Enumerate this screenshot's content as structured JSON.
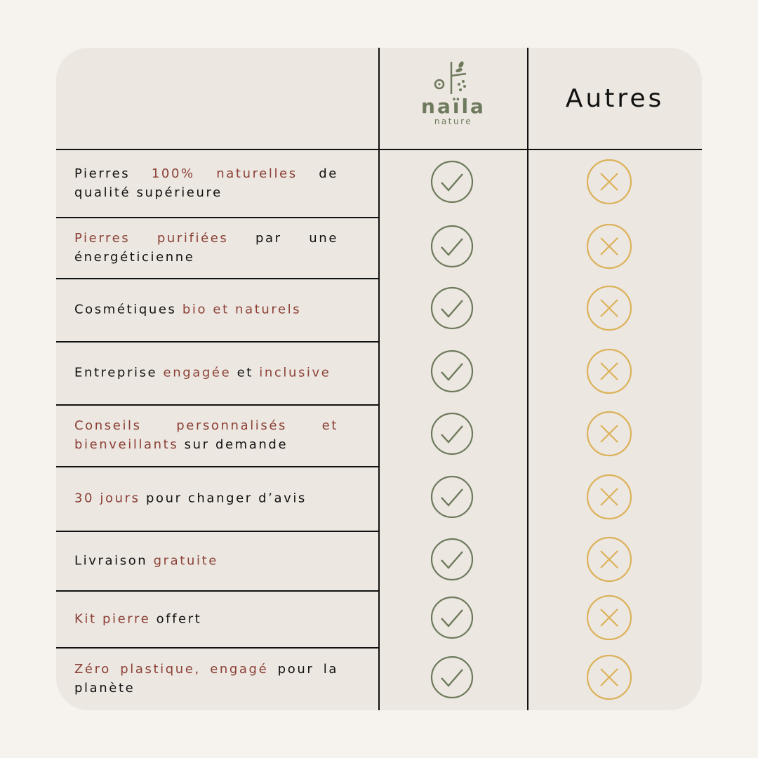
{
  "header": {
    "brand_name": "naïla",
    "brand_sub": "nature",
    "other_label": "Autres"
  },
  "colors": {
    "highlight": "#8b4036",
    "check": "#6e7a5c",
    "cross": "#dcb25a",
    "card": "#ece7e1",
    "background": "#f6f3ee"
  },
  "rows": [
    {
      "segments": [
        {
          "t": "Pierres ",
          "h": false
        },
        {
          "t": "100% naturelles",
          "h": true
        },
        {
          "t": " de qualité supérieure",
          "h": false
        }
      ],
      "naila": "check-icon",
      "autres": "cross-icon"
    },
    {
      "segments": [
        {
          "t": "Pierres purifiées",
          "h": true
        },
        {
          "t": " par une énergéticienne",
          "h": false
        }
      ],
      "naila": "check-icon",
      "autres": "cross-icon"
    },
    {
      "segments": [
        {
          "t": "Cosmétiques ",
          "h": false
        },
        {
          "t": "bio et naturels",
          "h": true
        }
      ],
      "naila": "check-icon",
      "autres": "cross-icon"
    },
    {
      "segments": [
        {
          "t": "Entreprise ",
          "h": false
        },
        {
          "t": "engagée",
          "h": true
        },
        {
          "t": " et ",
          "h": false
        },
        {
          "t": "inclusive",
          "h": true
        }
      ],
      "naila": "check-icon",
      "autres": "cross-icon"
    },
    {
      "segments": [
        {
          "t": "Conseils personnalisés et bienveillants",
          "h": true
        },
        {
          "t": " sur demande",
          "h": false
        }
      ],
      "naila": "check-icon",
      "autres": "cross-icon"
    },
    {
      "segments": [
        {
          "t": "30 jours",
          "h": true
        },
        {
          "t": " pour changer d’avis",
          "h": false
        }
      ],
      "naila": "check-icon",
      "autres": "cross-icon"
    },
    {
      "segments": [
        {
          "t": "Livraison ",
          "h": false
        },
        {
          "t": "gratuite",
          "h": true
        }
      ],
      "naila": "check-icon",
      "autres": "cross-icon"
    },
    {
      "segments": [
        {
          "t": "Kit pierre",
          "h": true
        },
        {
          "t": " offert",
          "h": false
        }
      ],
      "naila": "check-icon",
      "autres": "cross-icon"
    },
    {
      "segments": [
        {
          "t": "Zéro plastique, engagé",
          "h": true
        },
        {
          "t": " pour la planète",
          "h": false
        }
      ],
      "naila": "check-icon",
      "autres": "cross-icon"
    }
  ]
}
